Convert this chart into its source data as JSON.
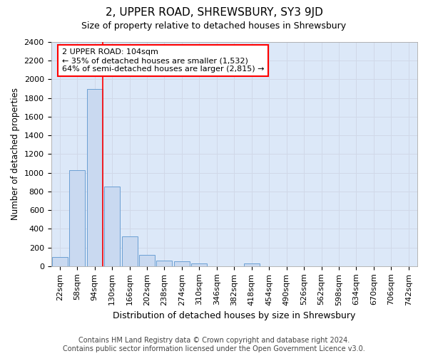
{
  "title": "2, UPPER ROAD, SHREWSBURY, SY3 9JD",
  "subtitle": "Size of property relative to detached houses in Shrewsbury",
  "xlabel": "Distribution of detached houses by size in Shrewsbury",
  "ylabel": "Number of detached properties",
  "footer_line1": "Contains HM Land Registry data © Crown copyright and database right 2024.",
  "footer_line2": "Contains public sector information licensed under the Open Government Licence v3.0.",
  "bar_labels": [
    "22sqm",
    "58sqm",
    "94sqm",
    "130sqm",
    "166sqm",
    "202sqm",
    "238sqm",
    "274sqm",
    "310sqm",
    "346sqm",
    "382sqm",
    "418sqm",
    "454sqm",
    "490sqm",
    "526sqm",
    "562sqm",
    "598sqm",
    "634sqm",
    "670sqm",
    "706sqm",
    "742sqm"
  ],
  "bar_values": [
    95,
    1025,
    1900,
    855,
    320,
    120,
    58,
    52,
    30,
    0,
    0,
    28,
    0,
    0,
    0,
    0,
    0,
    0,
    0,
    0,
    0
  ],
  "bar_color": "#c9d9f0",
  "bar_edge_color": "#6b9fd4",
  "ylim": [
    0,
    2400
  ],
  "yticks": [
    0,
    200,
    400,
    600,
    800,
    1000,
    1200,
    1400,
    1600,
    1800,
    2000,
    2200,
    2400
  ],
  "property_label": "2 UPPER ROAD: 104sqm",
  "annotation_line1": "← 35% of detached houses are smaller (1,532)",
  "annotation_line2": "64% of semi-detached houses are larger (2,815) →",
  "vline_pos": 2.48,
  "grid_color": "#d0d8e8",
  "fig_bg_color": "#ffffff",
  "plot_bg_color": "#dce8f8",
  "title_fontsize": 11,
  "subtitle_fontsize": 9,
  "ylabel_fontsize": 8.5,
  "xlabel_fontsize": 9,
  "tick_fontsize": 8,
  "footer_fontsize": 7
}
